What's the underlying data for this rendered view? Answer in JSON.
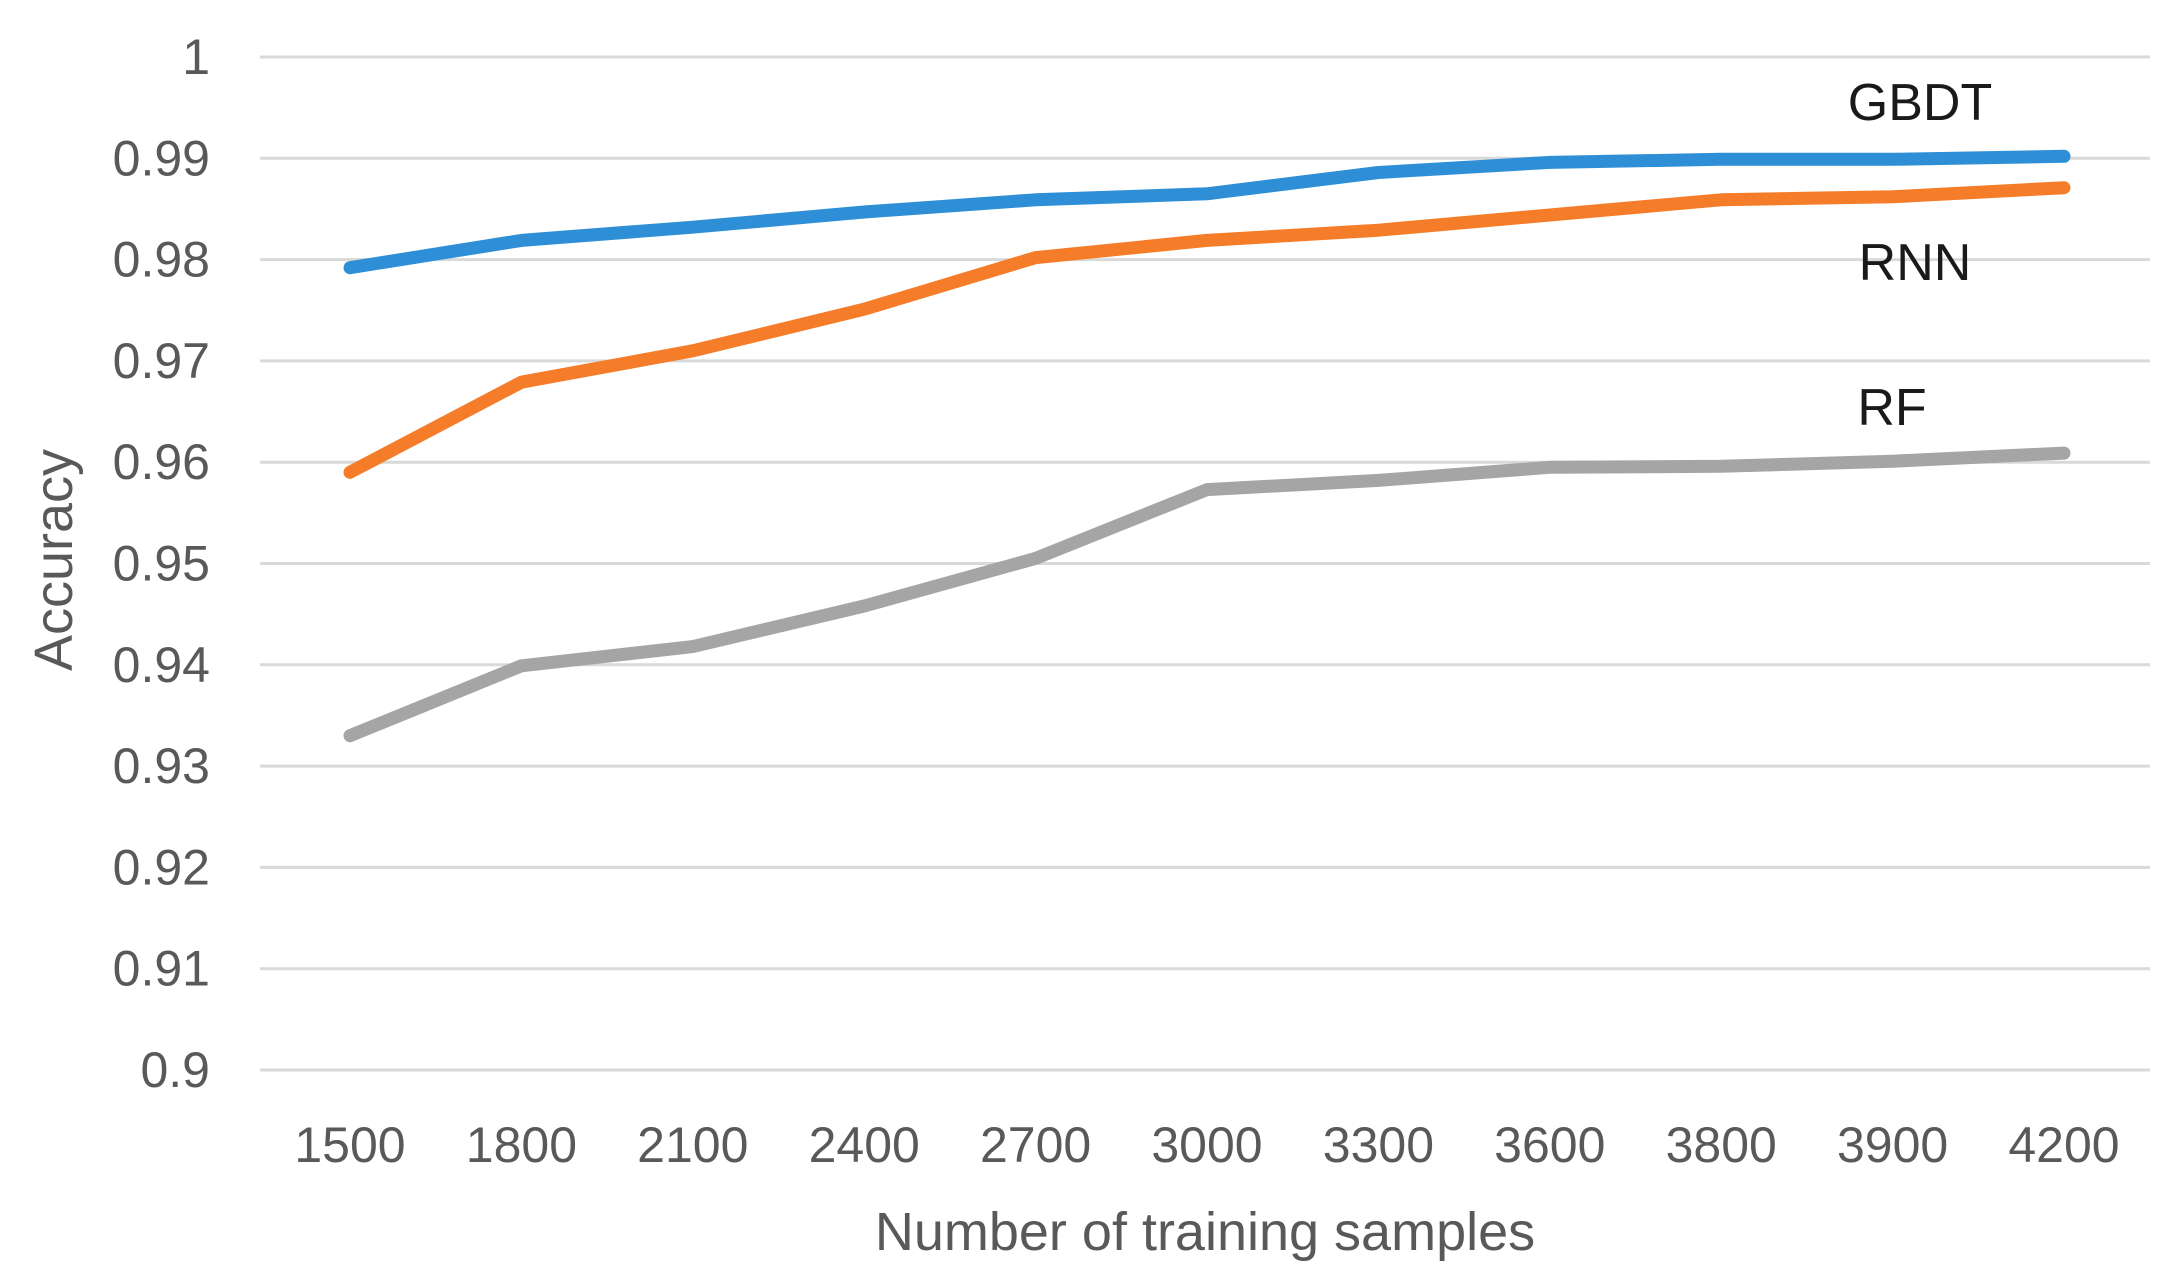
{
  "chart_data": {
    "type": "line",
    "title": "",
    "xlabel": "Number of training samples",
    "ylabel": "Accuracy",
    "categories": [
      "1500",
      "1800",
      "2100",
      "2400",
      "2700",
      "3000",
      "3300",
      "3600",
      "3800",
      "3900",
      "4200"
    ],
    "ylim": [
      0.9,
      1
    ],
    "yticks": [
      "0.9",
      "0.91",
      "0.92",
      "0.93",
      "0.94",
      "0.95",
      "0.96",
      "0.97",
      "0.98",
      "0.99",
      "1"
    ],
    "grid": true,
    "legend": "inline labels at right end of lines",
    "series": [
      {
        "name": "GBDT",
        "color": "#2e8fd6",
        "values": [
          0.9792,
          0.9819,
          0.9832,
          0.9847,
          0.9859,
          0.9865,
          0.9886,
          0.9896,
          0.9899,
          0.9899,
          0.9902
        ]
      },
      {
        "name": "RNN",
        "color": "#f57c28",
        "values": [
          0.959,
          0.9679,
          0.971,
          0.9751,
          0.9802,
          0.9819,
          0.9829,
          0.9844,
          0.9859,
          0.9862,
          0.9871
        ]
      },
      {
        "name": "RF",
        "color": "#a5a5a5",
        "values": [
          0.933,
          0.9399,
          0.9418,
          0.9458,
          0.9505,
          0.9573,
          0.9582,
          0.9595,
          0.9596,
          0.9601,
          0.9609
        ]
      }
    ]
  }
}
